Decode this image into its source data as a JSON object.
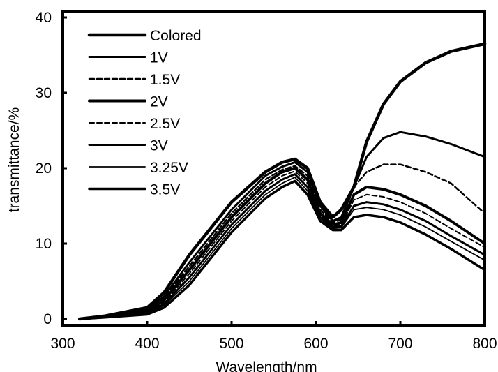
{
  "chart_data": {
    "type": "line",
    "title": "",
    "xlabel": "Wavelength/nm",
    "ylabel": "transmittance/%",
    "xlim": [
      300,
      800
    ],
    "ylim": [
      0,
      40
    ],
    "xticks": [
      300,
      400,
      500,
      600,
      700,
      800
    ],
    "yticks": [
      0,
      10,
      20,
      30,
      40
    ],
    "grid": false,
    "legend_position": "top-left",
    "series": [
      {
        "name": "Colored",
        "style": "solid",
        "width": 4.5,
        "x": [
          320,
          350,
          400,
          420,
          450,
          500,
          540,
          560,
          575,
          590,
          605,
          620,
          630,
          645,
          660,
          680,
          700,
          730,
          760,
          800
        ],
        "y": [
          0,
          0.4,
          1.5,
          3.5,
          8.5,
          15.5,
          19.5,
          20.8,
          21.2,
          20.0,
          15.5,
          13.5,
          14.5,
          17.5,
          23.5,
          28.5,
          31.5,
          34,
          35.5,
          36.5
        ]
      },
      {
        "name": "1V",
        "style": "solid",
        "width": 3,
        "x": [
          320,
          350,
          400,
          420,
          450,
          500,
          540,
          560,
          575,
          590,
          605,
          620,
          630,
          645,
          660,
          680,
          700,
          730,
          760,
          800
        ],
        "y": [
          0,
          0.3,
          1.2,
          3,
          7.5,
          14.5,
          19,
          20.2,
          20.8,
          19.5,
          15,
          13,
          13.5,
          17.5,
          21.5,
          24,
          24.8,
          24.2,
          23.2,
          21.5
        ]
      },
      {
        "name": "1.5V",
        "style": "dashed",
        "width": 2.5,
        "x": [
          320,
          350,
          400,
          420,
          450,
          500,
          540,
          560,
          575,
          590,
          605,
          620,
          630,
          645,
          660,
          680,
          700,
          730,
          760,
          800
        ],
        "y": [
          0,
          0.3,
          1.1,
          2.8,
          7,
          14,
          18.5,
          19.8,
          20.3,
          19,
          14.5,
          12.8,
          13.2,
          17.5,
          19.5,
          20.5,
          20.5,
          19.5,
          18,
          14
        ]
      },
      {
        "name": "2V",
        "style": "solid",
        "width": 4,
        "x": [
          320,
          350,
          400,
          420,
          450,
          500,
          540,
          560,
          575,
          590,
          605,
          620,
          630,
          645,
          660,
          680,
          700,
          730,
          760,
          800
        ],
        "y": [
          0,
          0.3,
          1,
          2.5,
          6.5,
          13.5,
          18,
          19.5,
          20,
          18.5,
          14,
          12.5,
          12.8,
          16.5,
          17.5,
          17.2,
          16.5,
          15,
          13,
          10
        ]
      },
      {
        "name": "2.5V",
        "style": "dashed",
        "width": 2,
        "x": [
          320,
          350,
          400,
          420,
          450,
          500,
          540,
          560,
          575,
          590,
          605,
          620,
          630,
          645,
          660,
          680,
          700,
          730,
          760,
          800
        ],
        "y": [
          0,
          0.2,
          0.9,
          2.2,
          6,
          13,
          17.5,
          19,
          19.6,
          18,
          13.8,
          12.3,
          12.5,
          15.8,
          16.5,
          16.2,
          15.5,
          14,
          12,
          9.5
        ]
      },
      {
        "name": "3V",
        "style": "solid",
        "width": 3,
        "x": [
          320,
          350,
          400,
          420,
          450,
          500,
          540,
          560,
          575,
          590,
          605,
          620,
          630,
          645,
          660,
          680,
          700,
          730,
          760,
          800
        ],
        "y": [
          0,
          0.2,
          0.8,
          2,
          5.5,
          12.5,
          17,
          18.5,
          19.2,
          17.5,
          13.5,
          12.2,
          12.3,
          15,
          15.5,
          15.2,
          14.5,
          13,
          11,
          8.5
        ]
      },
      {
        "name": "3.25V",
        "style": "solid",
        "width": 1.8,
        "x": [
          320,
          350,
          400,
          420,
          450,
          500,
          540,
          560,
          575,
          590,
          605,
          620,
          630,
          645,
          660,
          680,
          700,
          730,
          760,
          800
        ],
        "y": [
          0,
          0.2,
          0.7,
          1.8,
          5,
          12,
          16.5,
          18,
          18.8,
          17,
          13.2,
          12,
          12.1,
          14.5,
          14.8,
          14.5,
          13.8,
          12.2,
          10.3,
          7.8
        ]
      },
      {
        "name": "3.5V",
        "style": "solid",
        "width": 3.5,
        "x": [
          320,
          350,
          400,
          420,
          450,
          500,
          540,
          560,
          575,
          590,
          605,
          620,
          630,
          645,
          660,
          680,
          700,
          730,
          760,
          800
        ],
        "y": [
          0,
          0.2,
          0.6,
          1.5,
          4.5,
          11.5,
          16,
          17.5,
          18.3,
          16.5,
          13,
          11.8,
          11.8,
          13.5,
          13.8,
          13.5,
          12.8,
          11.2,
          9.3,
          6.5
        ]
      }
    ]
  }
}
